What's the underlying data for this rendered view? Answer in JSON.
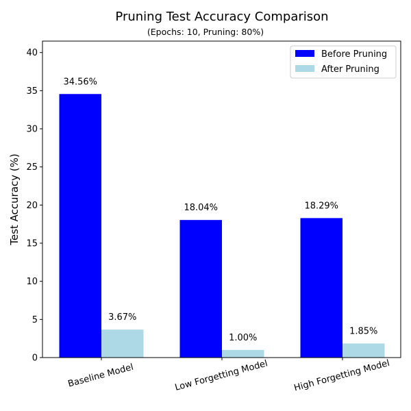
{
  "chart_data": {
    "type": "bar",
    "title": "Pruning Test Accuracy Comparison",
    "subtitle": "(Epochs: 10, Pruning: 80%)",
    "xlabel": "",
    "ylabel": "Test Accuracy (%)",
    "categories": [
      "Baseline Model",
      "Low Forgetting Model",
      "High Forgetting Model"
    ],
    "series": [
      {
        "name": "Before Pruning",
        "color": "#0000ff",
        "values": [
          34.56,
          18.04,
          18.29
        ],
        "labels": [
          "34.56%",
          "18.04%",
          "18.29%"
        ]
      },
      {
        "name": "After Pruning",
        "color": "#add8e6",
        "values": [
          3.67,
          1.0,
          1.85
        ],
        "labels": [
          "3.67%",
          "1.00%",
          "1.85%"
        ]
      }
    ],
    "ylim": [
      0,
      41.5
    ],
    "yticks": [
      0,
      5,
      10,
      15,
      20,
      25,
      30,
      35,
      40
    ],
    "grid": false,
    "legend_position": "top-right"
  }
}
